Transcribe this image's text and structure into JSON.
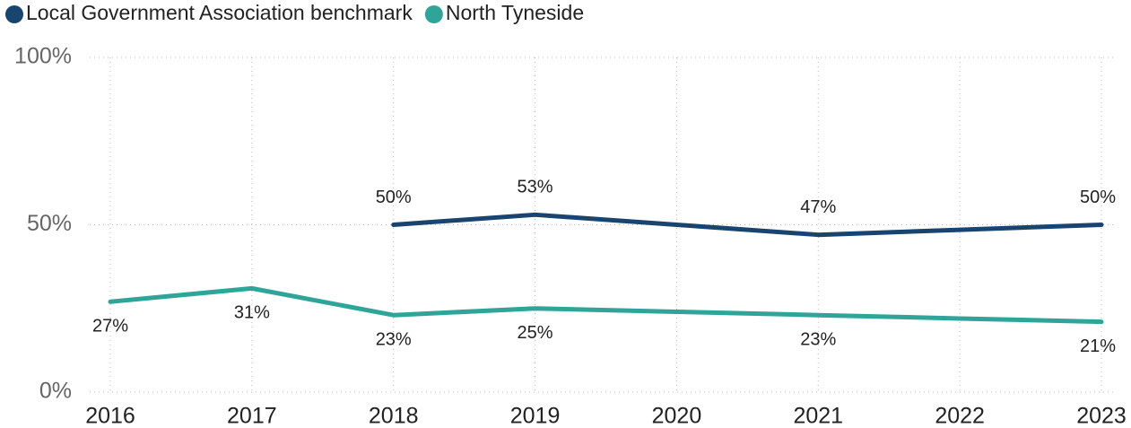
{
  "chart_data": {
    "type": "line",
    "categories": [
      "2016",
      "2017",
      "2018",
      "2019",
      "2020",
      "2021",
      "2022",
      "2023"
    ],
    "series": [
      {
        "name": "Local Government Association benchmark",
        "color": "#1a4470",
        "values": [
          null,
          null,
          50,
          53,
          50,
          47,
          48.5,
          50
        ],
        "value_labels": [
          null,
          null,
          "50%",
          "53%",
          null,
          "47%",
          null,
          "50%"
        ]
      },
      {
        "name": "North Tyneside",
        "color": "#2fa59a",
        "values": [
          27,
          31,
          23,
          25,
          24,
          23,
          22,
          21
        ],
        "value_labels": [
          "27%",
          "31%",
          "23%",
          "25%",
          null,
          "23%",
          null,
          "21%"
        ]
      }
    ],
    "ylim": [
      0,
      100
    ],
    "yticks": [
      {
        "value": 0,
        "label": "0%"
      },
      {
        "value": 50,
        "label": "50%"
      },
      {
        "value": 100,
        "label": "100%"
      }
    ],
    "grid": true
  }
}
